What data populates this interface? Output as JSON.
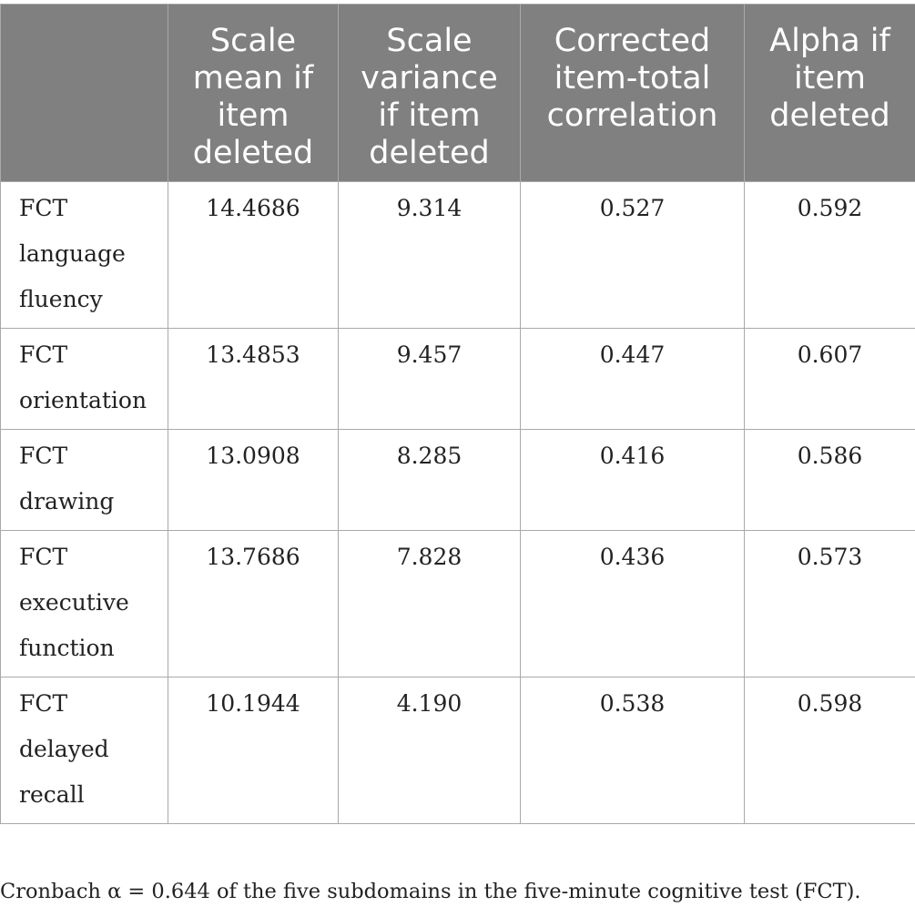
{
  "table": {
    "headers": [
      "",
      "Scale mean if item deleted",
      "Scale variance if item deleted",
      "Corrected item-total correlation",
      "Alpha if item deleted"
    ],
    "rows": [
      {
        "label": "FCT language fluency",
        "values": [
          "14.4686",
          "9.314",
          "0.527",
          "0.592"
        ]
      },
      {
        "label": "FCT orientation",
        "values": [
          "13.4853",
          "9.457",
          "0.447",
          "0.607"
        ]
      },
      {
        "label": "FCT drawing",
        "values": [
          "13.0908",
          "8.285",
          "0.416",
          "0.586"
        ]
      },
      {
        "label": "FCT executive function",
        "values": [
          "13.7686",
          "7.828",
          "0.436",
          "0.573"
        ]
      },
      {
        "label": "FCT delayed recall",
        "values": [
          "10.1944",
          "4.190",
          "0.538",
          "0.598"
        ]
      }
    ]
  },
  "caption": "Cronbach α = 0.644 of the five subdomains in the five-minute cognitive test (FCT).",
  "colors": {
    "header_background": "#7f807f",
    "header_text": "#ffffff",
    "grid_line": "#a9a9a9"
  }
}
